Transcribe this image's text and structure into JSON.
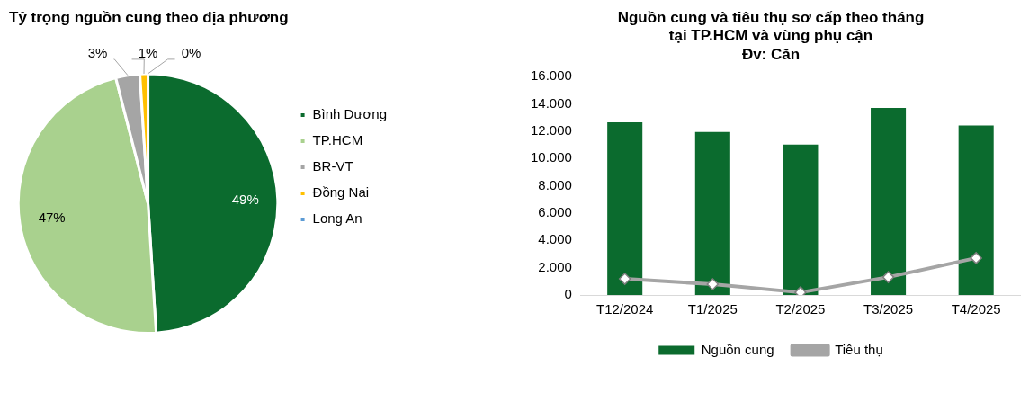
{
  "chart_data": [
    {
      "type": "pie",
      "title": "Tỷ trọng nguồn cung theo địa phương",
      "categories": [
        "Bình Dương",
        "TP.HCM",
        "BR-VT",
        "Đồng Nai",
        "Long An"
      ],
      "values": [
        49,
        47,
        3,
        1,
        0
      ],
      "colors": [
        "#0b6b2e",
        "#a9d18e",
        "#a5a5a5",
        "#ffc000",
        "#5b9bd5"
      ],
      "value_labels": [
        "49%",
        "47%",
        "3%",
        "1%",
        "0%"
      ],
      "legend": "right"
    },
    {
      "type": "bar",
      "title": "Nguồn cung và tiêu thụ sơ cấp theo tháng\ntại TP.HCM và vùng phụ cận",
      "subtitle": "Đv: Căn",
      "categories": [
        "T12/2024",
        "T1/2025",
        "T2/2025",
        "T3/2025",
        "T4/2025"
      ],
      "series": [
        {
          "name": "Nguồn cung",
          "type": "bar",
          "color": "#0b6b2e",
          "values": [
            12660,
            11950,
            11020,
            13700,
            12420
          ]
        },
        {
          "name": "Tiêu thụ",
          "type": "line",
          "color": "#a5a5a5",
          "marker": "diamond",
          "values": [
            1180,
            790,
            190,
            1310,
            2710
          ]
        }
      ],
      "ylim": [
        0,
        16000
      ],
      "yticks": [
        {
          "value": 0,
          "label": "0"
        },
        {
          "value": 2000,
          "label": "2.000"
        },
        {
          "value": 4000,
          "label": "4.000"
        },
        {
          "value": 6000,
          "label": "6.000"
        },
        {
          "value": 8000,
          "label": "8.000"
        },
        {
          "value": 10000,
          "label": "10.000"
        },
        {
          "value": 12000,
          "label": "12.000"
        },
        {
          "value": 14000,
          "label": "14.000"
        },
        {
          "value": 16000,
          "label": "16.000"
        }
      ],
      "grid": false,
      "legend": "bottom"
    }
  ]
}
